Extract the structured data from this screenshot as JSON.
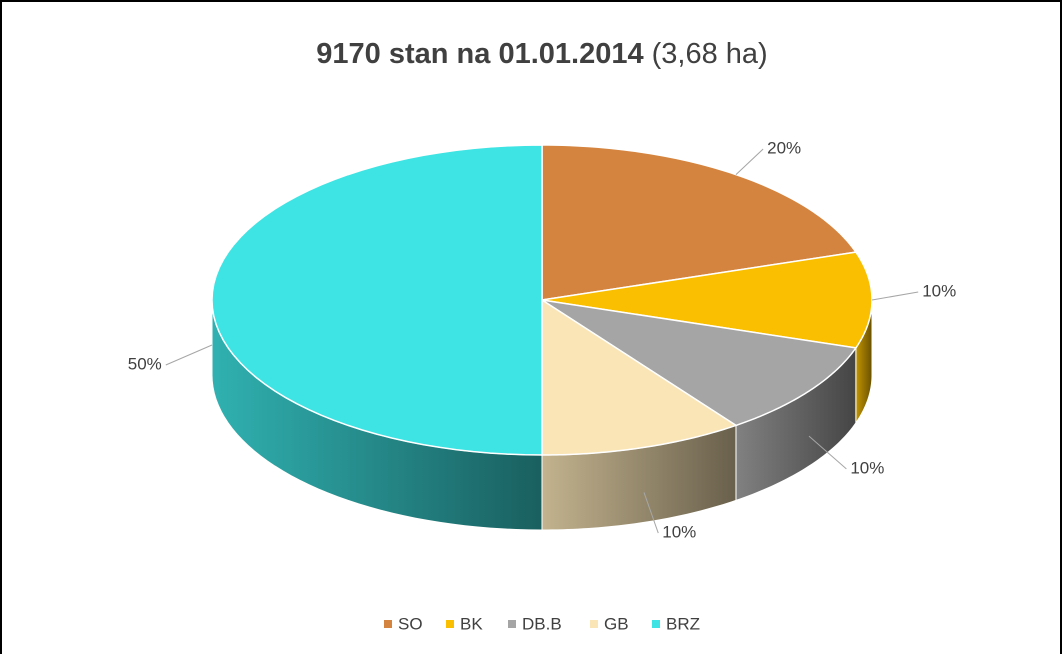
{
  "chart_data": {
    "type": "pie3d",
    "title": "9170 stan na 01.01.2014",
    "subtitle": "(3,68 ha)",
    "categories": [
      "SO",
      "BK",
      "DB.B",
      "GB",
      "BRZ"
    ],
    "values": [
      20,
      10,
      10,
      10,
      50
    ],
    "value_labels": [
      "20%",
      "10%",
      "10%",
      "10%",
      "50%"
    ],
    "colors": [
      "#d4843e",
      "#f9bf00",
      "#a5a5a5",
      "#fae5b6",
      "#3ee3e3"
    ],
    "legend": "bottom"
  }
}
